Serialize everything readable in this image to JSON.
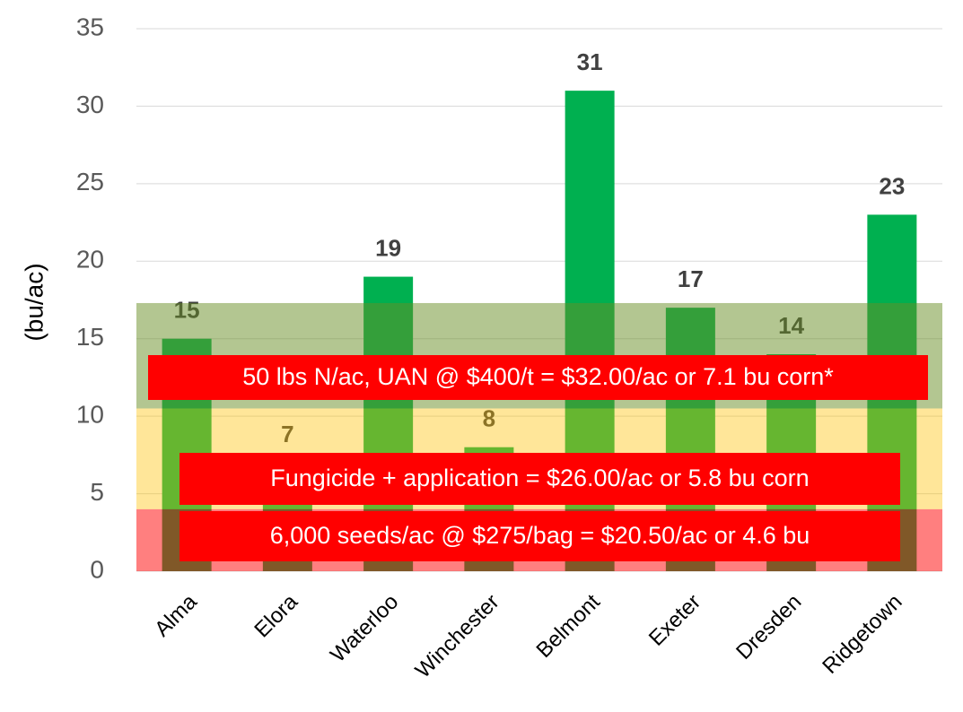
{
  "chart_data": {
    "type": "bar",
    "y_label": "(bu/ac)",
    "categories": [
      "Alma",
      "Elora",
      "Waterloo",
      "Winchester",
      "Belmont",
      "Exeter",
      "Dresden",
      "Ridgetown"
    ],
    "values": [
      15,
      7,
      19,
      8,
      31,
      17,
      14,
      23
    ],
    "color": "#00b050",
    "ylim": [
      0,
      35
    ],
    "yticks": [
      0,
      5,
      10,
      15,
      20,
      25,
      30,
      35
    ],
    "grid": true,
    "bands": [
      {
        "from": 0,
        "to": 4,
        "color": "rgba(255,0,0,0.5)"
      },
      {
        "from": 4,
        "to": 10.5,
        "color": "rgba(255,192,0,0.4)"
      },
      {
        "from": 10.5,
        "to": 17.3,
        "color": "rgba(104,142,35,0.5)"
      }
    ],
    "annotations": [
      "50 lbs N/ac, UAN @ $400/t = $32.00/ac or 7.1 bu corn*",
      "Fungicide + application = $26.00/ac or 5.8 bu corn",
      "6,000 seeds/ac @ $275/bag = $20.50/ac or 4.6 bu"
    ]
  }
}
